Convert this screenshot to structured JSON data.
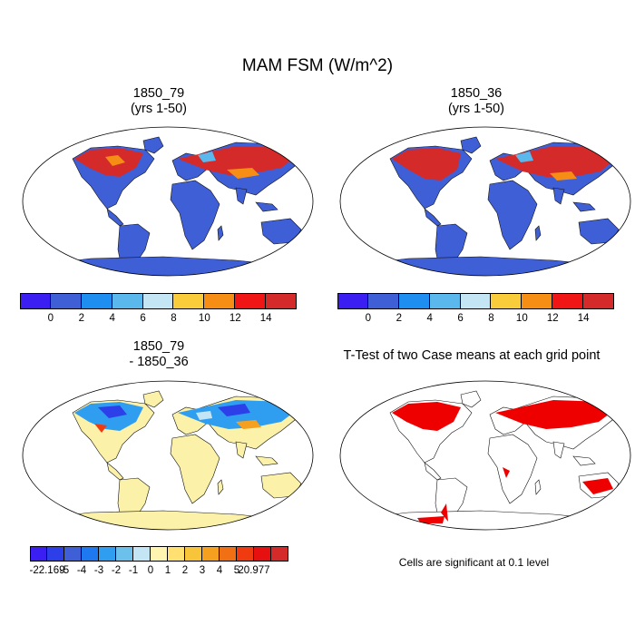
{
  "figure": {
    "title": "MAM FSM (W/m^2)",
    "panels": [
      {
        "id": "case1",
        "title_line1": "1850_79",
        "title_line2": "(yrs 1-50)"
      },
      {
        "id": "case2",
        "title_line1": "1850_36",
        "title_line2": "(yrs 1-50)"
      },
      {
        "id": "diff",
        "title_line1": "1850_79",
        "title_line2": "- 1850_36"
      },
      {
        "id": "ttest",
        "title_line1": "T-Test of two Case means at each grid point",
        "title_line2": ""
      }
    ],
    "colorbar_top": {
      "colors": [
        "#3b1ff2",
        "#3f5fd6",
        "#1e8ff0",
        "#5ab8ec",
        "#c4e6f4",
        "#f8cc3a",
        "#f68d14",
        "#f01616",
        "#d42a2a"
      ],
      "ticks": [
        "0",
        "2",
        "4",
        "6",
        "8",
        "10",
        "12",
        "14"
      ]
    },
    "colorbar_diff": {
      "colors": [
        "#3b1ff2",
        "#2c3fe8",
        "#3f5fd6",
        "#1e78f0",
        "#2f9ef0",
        "#6cc0ec",
        "#c4e6f4",
        "#fff5b0",
        "#ffe070",
        "#f8c43a",
        "#f6a020",
        "#f27014",
        "#f03a10",
        "#e61010",
        "#d42a2a"
      ],
      "ticks": [
        "-22.169",
        "-5",
        "-4",
        "-3",
        "-2",
        "-1",
        "0",
        "1",
        "2",
        "3",
        "4",
        "5",
        "20.977"
      ]
    },
    "ttest_note": "Cells are significant at 0.1 level",
    "colors": {
      "land_low": "#3f5fd6",
      "high_red": "#d42a2a",
      "mid_orange": "#f68d14",
      "diff_land": "#fbf1a8",
      "ttest_sig": "#ee0000"
    }
  }
}
